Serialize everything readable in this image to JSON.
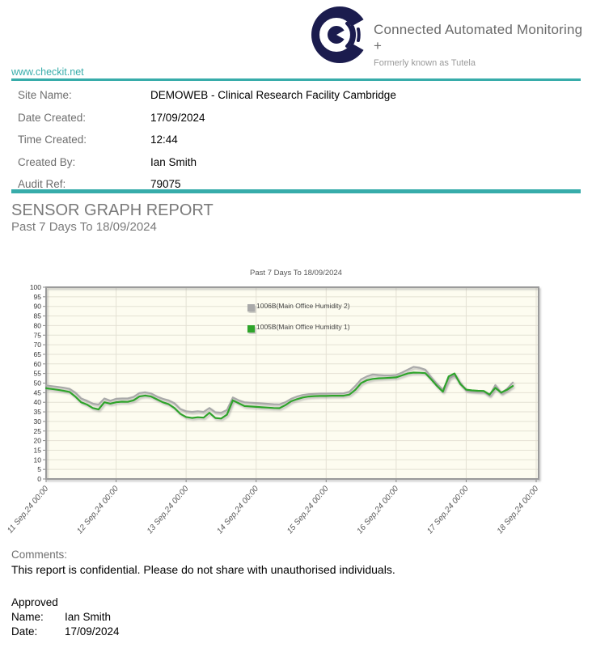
{
  "colors": {
    "accent_teal": "#37acaa",
    "logo_navy": "#1b1c4e",
    "series_gray": "#a9a9a9",
    "series_green": "#2fa42c",
    "plot_bg": "#fdfcf0",
    "grid_line": "#e4e1d4",
    "plot_border": "#9b9b9b"
  },
  "header": {
    "brand_title": "Connected Automated Monitoring +",
    "brand_subtitle": "Formerly known as Tutela",
    "website": "www.checkit.net"
  },
  "fields": [
    {
      "label": "Site Name:",
      "value": "DEMOWEB - Clinical Research Facility Cambridge"
    },
    {
      "label": "Date Created:",
      "value": "17/09/2024"
    },
    {
      "label": "Time Created:",
      "value": "12:44"
    },
    {
      "label": "Created By:",
      "value": "Ian Smith"
    },
    {
      "label": "Audit Ref:",
      "value": "79075"
    }
  ],
  "report": {
    "title": "SENSOR GRAPH REPORT",
    "subtitle": "Past 7 Days To 18/09/2024"
  },
  "chart_data": {
    "type": "line",
    "title": "Past 7 Days To 18/09/2024",
    "xlabel": "",
    "ylabel": "",
    "ylim": [
      0,
      100
    ],
    "y_tick_step": 5,
    "xlim_hours": [
      0,
      168
    ],
    "x_tick_hours": [
      0,
      24,
      48,
      72,
      96,
      120,
      144,
      168
    ],
    "x_tick_labels": [
      "11 Sep,24 00:00",
      "12 Sep,24 00:00",
      "13 Sep,24 00:00",
      "14 Sep,24 00:00",
      "15 Sep,24 00:00",
      "16 Sep,24 00:00",
      "17 Sep,24 00:00",
      "18 Sep,24 00:00"
    ],
    "grid": true,
    "legend_position": "inside-top-center",
    "sample_step_hours": 2,
    "series": [
      {
        "name": "1006B(Main Office Humidity 2)",
        "color": "#a9a9a9",
        "values": [
          48.8,
          48.4,
          48.0,
          47.6,
          47.0,
          45.0,
          42.0,
          40.8,
          39.3,
          38.8,
          42.0,
          40.8,
          41.8,
          42.0,
          42.0,
          42.8,
          44.8,
          45.2,
          44.6,
          43.0,
          41.8,
          41.0,
          39.5,
          36.5,
          35.3,
          35.0,
          35.3,
          35.0,
          37.0,
          34.8,
          34.5,
          36.0,
          42.5,
          41.0,
          40.0,
          39.8,
          39.6,
          39.4,
          39.2,
          39.0,
          38.9,
          40.0,
          41.8,
          43.0,
          43.8,
          44.2,
          44.4,
          44.5,
          44.5,
          44.6,
          44.6,
          44.7,
          45.5,
          48.5,
          52.0,
          53.5,
          54.5,
          54.2,
          54.0,
          54.0,
          54.2,
          55.5,
          57.0,
          58.5,
          58.0,
          57.0,
          53.0,
          49.5,
          46.5,
          52.5,
          54.0,
          50.0,
          46.3,
          45.9,
          45.7,
          45.6,
          43.5,
          49.0,
          44.8,
          47.0,
          50.3
        ]
      },
      {
        "name": "1005B(Main Office Humidity 1)",
        "color": "#2fa42c",
        "values": [
          47.3,
          46.9,
          46.5,
          46.0,
          45.4,
          43.0,
          40.0,
          38.8,
          37.0,
          36.3,
          40.0,
          39.3,
          40.0,
          40.3,
          40.2,
          41.0,
          43.0,
          43.5,
          43.0,
          41.5,
          40.0,
          39.0,
          37.0,
          34.0,
          32.3,
          31.8,
          32.2,
          32.0,
          34.5,
          31.8,
          31.5,
          33.5,
          41.0,
          39.5,
          38.0,
          37.8,
          37.6,
          37.4,
          37.2,
          37.0,
          36.9,
          38.5,
          40.5,
          41.6,
          42.5,
          43.0,
          43.2,
          43.3,
          43.3,
          43.4,
          43.4,
          43.4,
          44.0,
          46.5,
          50.0,
          51.5,
          52.2,
          52.5,
          52.6,
          52.8,
          53.0,
          54.0,
          55.0,
          55.5,
          55.4,
          55.2,
          52.0,
          48.5,
          45.5,
          53.5,
          55.0,
          49.5,
          46.6,
          46.2,
          46.0,
          45.9,
          44.0,
          47.5,
          45.0,
          46.5,
          48.5
        ]
      }
    ]
  },
  "comments": {
    "label": "Comments:",
    "text": "This report is confidential. Please do not share with unauthorised individuals."
  },
  "approval": {
    "heading": "Approved",
    "name_label": "Name:",
    "name_value": "Ian Smith",
    "date_label": "Date:",
    "date_value": "17/09/2024"
  }
}
